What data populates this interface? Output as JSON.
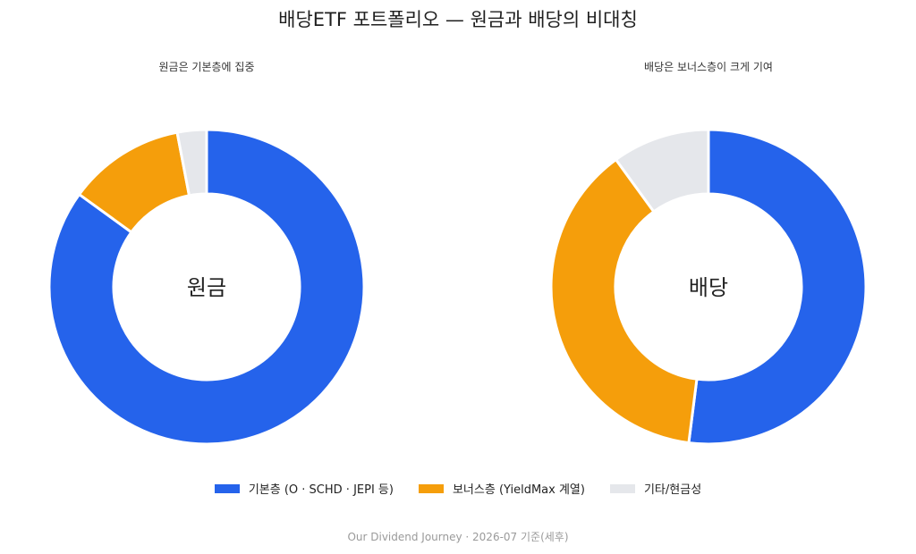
{
  "page": {
    "title": "배당ETF 포트폴리오 — 원금과 배당의 비대칭",
    "footer": "Our Dividend Journey · 2026-07 기준(세후)"
  },
  "legend": [
    {
      "label": "기본층 (O · SCHD · JEPI 등)",
      "color": "#2563eb"
    },
    {
      "label": "보너스층 (YieldMax 계열)",
      "color": "#f59e0b"
    },
    {
      "label": "기타/현금성",
      "color": "#e5e7eb"
    }
  ],
  "chart_data": [
    {
      "type": "pie",
      "variant": "donut",
      "subtitle": "원금은 기본층에 집중",
      "center_label": "원금",
      "categories": [
        "기본층 (O · SCHD · JEPI 등)",
        "보너스층 (YieldMax 계열)",
        "기타/현금성"
      ],
      "values": [
        85,
        12,
        3
      ],
      "colors": [
        "#2563eb",
        "#f59e0b",
        "#e5e7eb"
      ],
      "start_angle_deg": 90,
      "direction": "clockwise"
    },
    {
      "type": "pie",
      "variant": "donut",
      "subtitle": "배당은 보너스층이 크게 기여",
      "center_label": "배당",
      "categories": [
        "기본층 (O · SCHD · JEPI 등)",
        "보너스층 (YieldMax 계열)",
        "기타/현금성"
      ],
      "values": [
        52,
        38,
        10
      ],
      "colors": [
        "#2563eb",
        "#f59e0b",
        "#e5e7eb"
      ],
      "start_angle_deg": 90,
      "direction": "clockwise"
    }
  ]
}
